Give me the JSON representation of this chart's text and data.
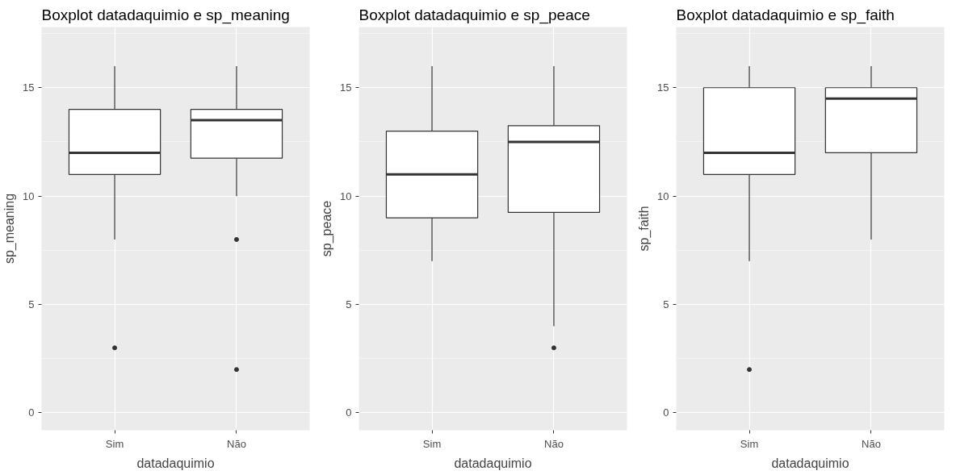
{
  "chart_data": [
    {
      "type": "box",
      "title": "Boxplot datadaquimio e sp_meaning",
      "xlabel": "datadaquimio",
      "ylabel": "sp_meaning",
      "categories": [
        "Sim",
        "Não"
      ],
      "ylim": [
        -0.8,
        17.8
      ],
      "yticks": [
        0,
        5,
        10,
        15
      ],
      "grid": true,
      "boxes": [
        {
          "low": 8,
          "q1": 11,
          "median": 12,
          "q3": 14,
          "high": 16,
          "outliers": [
            3
          ]
        },
        {
          "low": 10,
          "q1": 11.75,
          "median": 13.5,
          "q3": 14,
          "high": 16,
          "outliers": [
            8,
            2
          ]
        }
      ]
    },
    {
      "type": "box",
      "title": "Boxplot datadaquimio e sp_peace",
      "xlabel": "datadaquimio",
      "ylabel": "sp_peace",
      "categories": [
        "Sim",
        "Não"
      ],
      "ylim": [
        -0.8,
        17.8
      ],
      "yticks": [
        0,
        5,
        10,
        15
      ],
      "grid": true,
      "boxes": [
        {
          "low": 7,
          "q1": 9,
          "median": 11,
          "q3": 13,
          "high": 16
        },
        {
          "low": 4,
          "q1": 9.25,
          "median": 12.5,
          "q3": 13.25,
          "high": 16,
          "outliers": [
            3
          ]
        }
      ]
    },
    {
      "type": "box",
      "title": "Boxplot datadaquimio e sp_faith",
      "xlabel": "datadaquimio",
      "ylabel": "sp_faith",
      "categories": [
        "Sim",
        "Não"
      ],
      "ylim": [
        -0.8,
        17.8
      ],
      "yticks": [
        0,
        5,
        10,
        15
      ],
      "grid": true,
      "boxes": [
        {
          "low": 7,
          "q1": 11,
          "median": 12,
          "q3": 15,
          "high": 16,
          "outliers": [
            2
          ]
        },
        {
          "low": 8,
          "q1": 12,
          "median": 14.5,
          "q3": 15,
          "high": 16
        }
      ]
    }
  ]
}
